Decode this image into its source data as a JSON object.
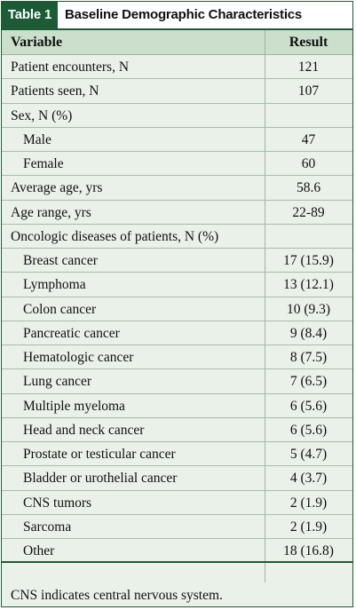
{
  "table": {
    "tag": "Table 1",
    "title": "Baseline Demographic Characteristics",
    "columns": [
      "Variable",
      "Result"
    ],
    "rows": [
      {
        "label": "Patient encounters, N",
        "value": "121",
        "indent": false
      },
      {
        "label": "Patients seen, N",
        "value": "107",
        "indent": false
      },
      {
        "label": "Sex, N (%)",
        "value": "",
        "indent": false
      },
      {
        "label": "Male",
        "value": "47",
        "indent": true
      },
      {
        "label": "Female",
        "value": "60",
        "indent": true
      },
      {
        "label": "Average age, yrs",
        "value": "58.6",
        "indent": false
      },
      {
        "label": "Age range, yrs",
        "value": "22-89",
        "indent": false
      },
      {
        "label": "Oncologic diseases of patients, N (%)",
        "value": "",
        "indent": false
      },
      {
        "label": "Breast cancer",
        "value": "17 (15.9)",
        "indent": true
      },
      {
        "label": "Lymphoma",
        "value": "13 (12.1)",
        "indent": true
      },
      {
        "label": "Colon cancer",
        "value": "10 (9.3)",
        "indent": true
      },
      {
        "label": "Pancreatic cancer",
        "value": "9 (8.4)",
        "indent": true
      },
      {
        "label": "Hematologic cancer",
        "value": "8 (7.5)",
        "indent": true
      },
      {
        "label": "Lung cancer",
        "value": "7 (6.5)",
        "indent": true
      },
      {
        "label": "Multiple myeloma",
        "value": "6 (5.6)",
        "indent": true
      },
      {
        "label": "Head and neck cancer",
        "value": "6 (5.6)",
        "indent": true
      },
      {
        "label": "Prostate or testicular cancer",
        "value": "5 (4.7)",
        "indent": true
      },
      {
        "label": "Bladder or urothelial cancer",
        "value": "4 (3.7)",
        "indent": true
      },
      {
        "label": "CNS tumors",
        "value": "2 (1.9)",
        "indent": true
      },
      {
        "label": "Sarcoma",
        "value": "2 (1.9)",
        "indent": true
      },
      {
        "label": "Other",
        "value": "18 (16.8)",
        "indent": true
      }
    ],
    "footnote": "CNS indicates central nervous system."
  },
  "colors": {
    "accent": "#1c5b36",
    "body_bg": "#e9f1e9",
    "header_bg": "#ccdfcc"
  }
}
